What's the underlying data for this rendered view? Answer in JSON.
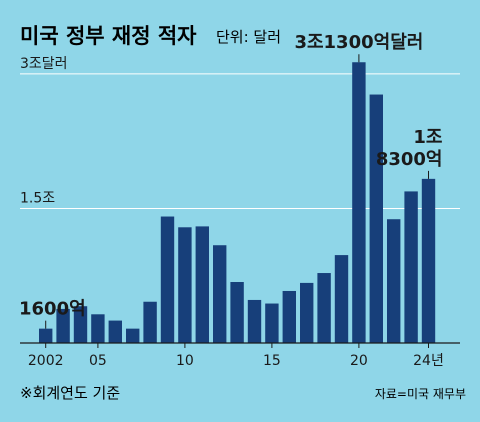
{
  "colors": {
    "background": "#8fd6e8",
    "bar": "#173f7a",
    "text": "#1a1a1a",
    "grid": "#ffffff"
  },
  "header": {
    "title": "미국 정부 재정 적자",
    "unit": "단위: 달러"
  },
  "footer": {
    "note": "※회계연도 기준",
    "source": "자료=미국 재무부"
  },
  "chart_data": {
    "type": "bar",
    "title": "미국 정부 재정 적자",
    "unit_label": "단위: 달러",
    "categories": [
      "2002",
      "2003",
      "2004",
      "2005",
      "2006",
      "2007",
      "2008",
      "2009",
      "2010",
      "2011",
      "2012",
      "2013",
      "2014",
      "2015",
      "2016",
      "2017",
      "2018",
      "2019",
      "2020",
      "2021",
      "2022",
      "2023",
      "2024"
    ],
    "values": [
      0.16,
      0.38,
      0.41,
      0.32,
      0.25,
      0.16,
      0.46,
      1.41,
      1.29,
      1.3,
      1.09,
      0.68,
      0.48,
      0.44,
      0.58,
      0.67,
      0.78,
      0.98,
      3.13,
      2.77,
      1.38,
      1.69,
      1.83
    ],
    "value_unit": "조 달러",
    "ylim": [
      0,
      3.3
    ],
    "y_ticks": [
      {
        "value": 3.0,
        "label": "3조달러"
      },
      {
        "value": 1.5,
        "label": "1.5조"
      }
    ],
    "x_tick_labels": [
      {
        "index": 0,
        "label": "2002"
      },
      {
        "index": 3,
        "label": "05"
      },
      {
        "index": 8,
        "label": "10"
      },
      {
        "index": 13,
        "label": "15"
      },
      {
        "index": 18,
        "label": "20"
      },
      {
        "index": 22,
        "label": "24년"
      }
    ],
    "annotations": [
      {
        "index": 0,
        "lines": [
          "1600억"
        ]
      },
      {
        "index": 18,
        "lines": [
          "3조1300억달러"
        ]
      },
      {
        "index": 22,
        "lines": [
          "1조",
          "8300억"
        ]
      }
    ],
    "grid": true
  }
}
